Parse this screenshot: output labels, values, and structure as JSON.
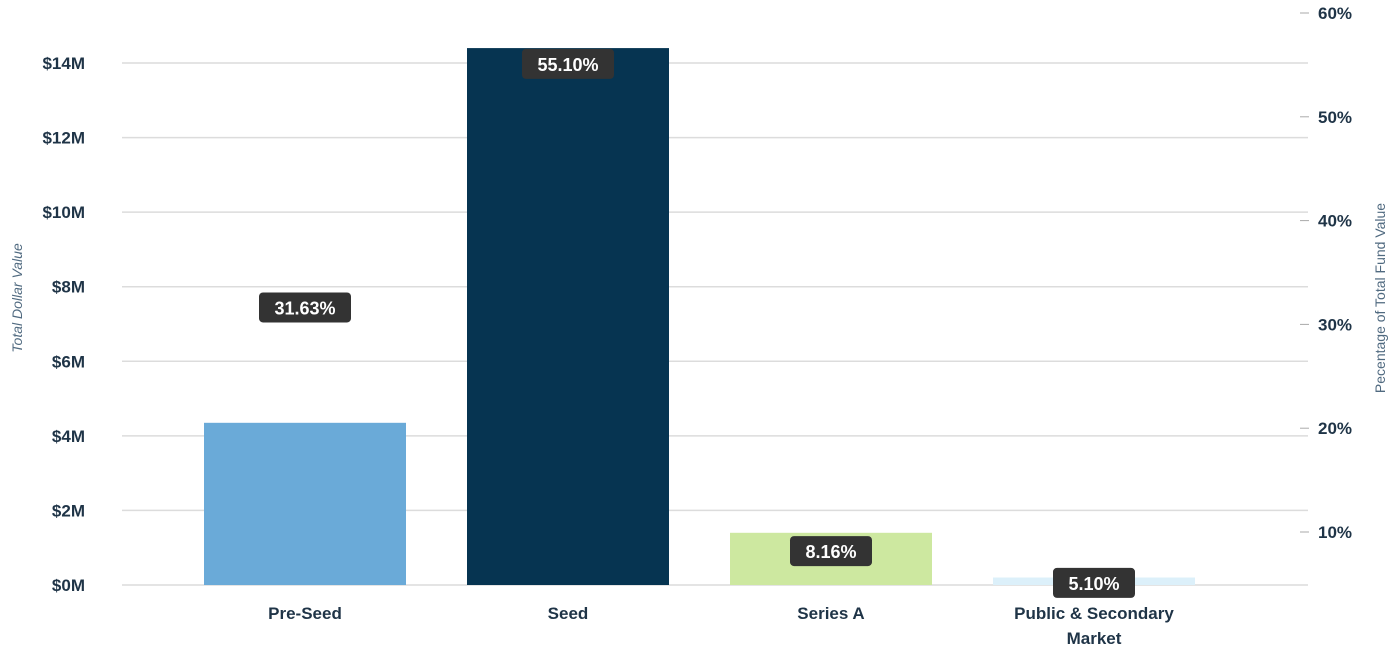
{
  "chart_data": {
    "type": "bar",
    "title": "",
    "xlabel": "",
    "ylabel": "Total Dollar Value",
    "y2label": "Pecentage of Total Fund Value",
    "categories": [
      "Pre-Seed",
      "Seed",
      "Series A",
      "Public & Secondary Market"
    ],
    "category_lines": [
      [
        "Pre-Seed"
      ],
      [
        "Seed"
      ],
      [
        "Series A"
      ],
      [
        "Public & Secondary",
        "Market"
      ]
    ],
    "values_millions": [
      4.35,
      14.4,
      1.4,
      0.2
    ],
    "percent_labels": [
      "31.63%",
      "55.10%",
      "8.16%",
      "5.10%"
    ],
    "percent_values": [
      31.63,
      55.1,
      8.16,
      5.1
    ],
    "colors": [
      "#6aaad8",
      "#063451",
      "#cde8a0",
      "#dcf0fa"
    ],
    "ylim": [
      0,
      14
    ],
    "yticks": [
      "$0M",
      "$2M",
      "$4M",
      "$6M",
      "$8M",
      "$10M",
      "$12M",
      "$14M"
    ],
    "y2lim": [
      5,
      60
    ],
    "y2ticks": [
      "10%",
      "20%",
      "30%",
      "40%",
      "50%",
      "60%"
    ],
    "grid": true,
    "legend": "none"
  }
}
